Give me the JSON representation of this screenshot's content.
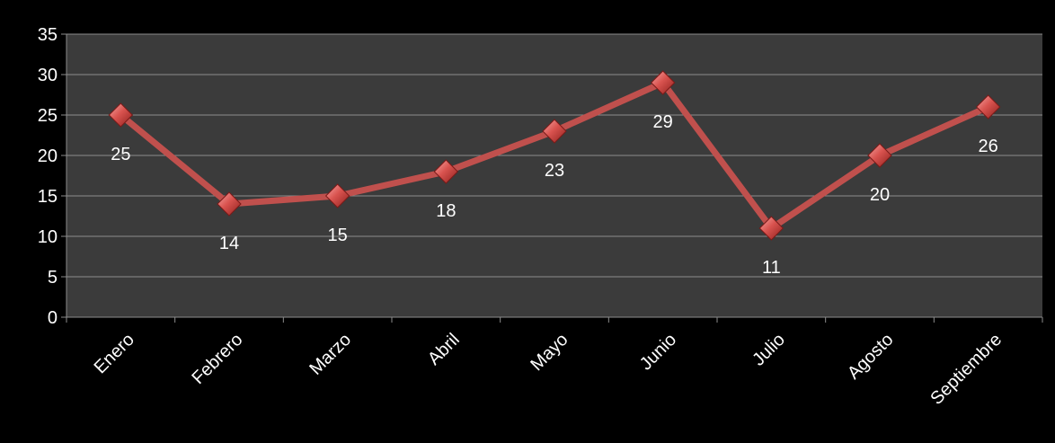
{
  "chart_data": {
    "type": "line",
    "categories": [
      "Enero",
      "Febrero",
      "Marzo",
      "Abril",
      "Mayo",
      "Junio",
      "Julio",
      "Agosto",
      "Septiembre"
    ],
    "values": [
      25,
      14,
      15,
      18,
      23,
      29,
      11,
      20,
      26
    ],
    "ylim": [
      0,
      35
    ],
    "yticks": [
      0,
      5,
      10,
      15,
      20,
      25,
      30,
      35
    ],
    "grid": true,
    "legend": "none",
    "data_labels": "below",
    "colors": {
      "background": "#000000",
      "plot_area": "#3b3b3b",
      "line": "#c0504d",
      "marker": "#d9534f",
      "gridline": "#8c8c8c",
      "text": "#ffffff"
    }
  }
}
